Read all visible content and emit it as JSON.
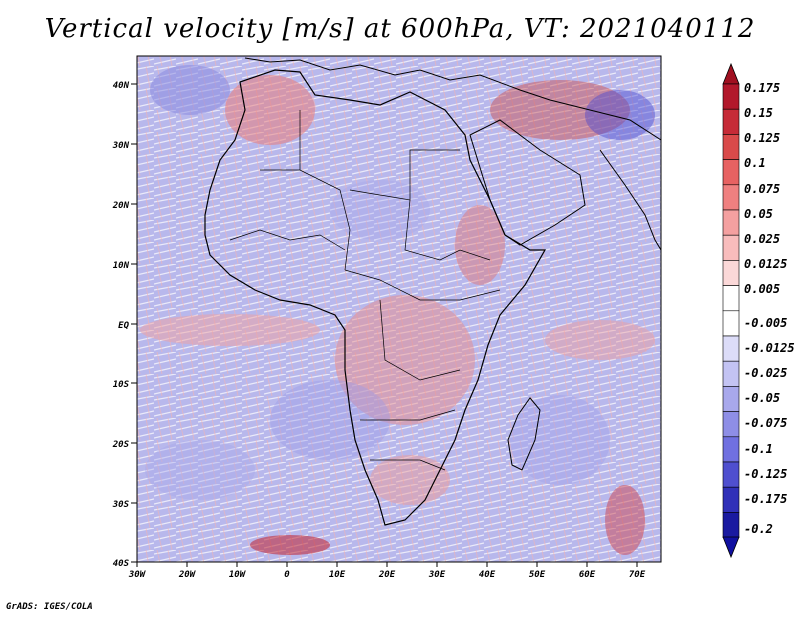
{
  "title": "Vertical velocity [m/s] at 600hPa, VT: 2021040112",
  "credit": "GrADS: IGES/COLA",
  "map": {
    "lat_labels": [
      "40N",
      "30N",
      "20N",
      "10N",
      "EQ",
      "10S",
      "20S",
      "30S",
      "40S"
    ],
    "lon_labels": [
      "30W",
      "20W",
      "10W",
      "0",
      "10E",
      "20E",
      "30E",
      "40E",
      "50E",
      "60E",
      "70E"
    ]
  },
  "colorbar": {
    "labels": [
      "0.175",
      "0.15",
      "0.125",
      "0.1",
      "0.075",
      "0.05",
      "0.025",
      "0.0125",
      "0.005",
      "-0.005",
      "-0.0125",
      "-0.025",
      "-0.05",
      "-0.075",
      "-0.1",
      "-0.125",
      "-0.175",
      "-0.2"
    ],
    "colors": [
      "#b2182b",
      "#c62b37",
      "#d94a4a",
      "#e76262",
      "#ef8080",
      "#f4a0a0",
      "#f8bcbc",
      "#fbd8d8",
      "#ffffff",
      "#ffffff",
      "#dcdcf8",
      "#c3c3f3",
      "#a8a8ec",
      "#8e8ee6",
      "#7070e0",
      "#4f4fcf",
      "#3030b8",
      "#1a1aa0"
    ],
    "top_arrow_color": "#a01020",
    "bottom_arrow_color": "#1010a0"
  }
}
